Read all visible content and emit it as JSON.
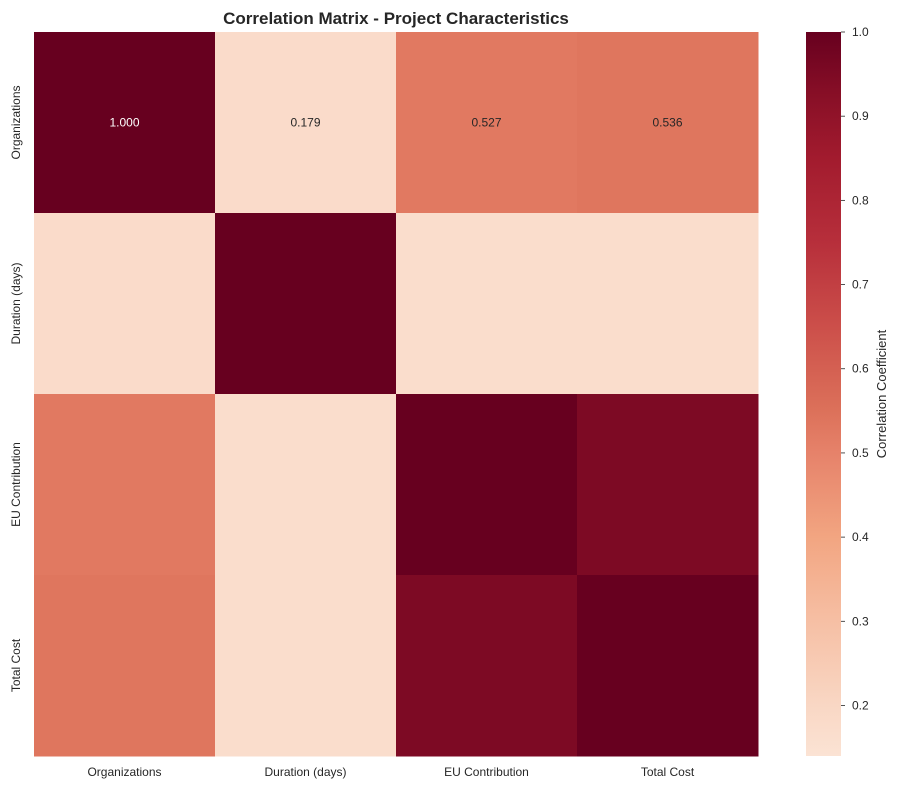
{
  "chart_data": {
    "type": "heatmap",
    "title": "Correlation Matrix - Project Characteristics",
    "xlabel": "",
    "ylabel": "",
    "x_categories": [
      "Organizations",
      "Duration (days)",
      "EU Contribution",
      "Total Cost"
    ],
    "y_categories": [
      "Organizations",
      "Duration (days)",
      "EU Contribution",
      "Total Cost"
    ],
    "values": [
      [
        1.0,
        0.179,
        0.527,
        0.536
      ],
      [
        0.179,
        1.0,
        0.17,
        0.17
      ],
      [
        0.527,
        0.17,
        1.0,
        0.95
      ],
      [
        0.536,
        0.17,
        0.95,
        1.0
      ]
    ],
    "annotations": [
      [
        "1.000",
        "0.179",
        "0.527",
        "0.536"
      ],
      [
        "",
        "",
        "",
        ""
      ],
      [
        "",
        "",
        "",
        ""
      ],
      [
        "",
        "",
        "",
        ""
      ]
    ],
    "colorbar": {
      "label": "Correlation Coefficient",
      "min": 0.14,
      "max": 1.0,
      "ticks": [
        0.2,
        0.3,
        0.4,
        0.5,
        0.6,
        0.7,
        0.8,
        0.9,
        1.0
      ],
      "tick_labels": [
        "0.2",
        "0.3",
        "0.4",
        "0.5",
        "0.6",
        "0.7",
        "0.8",
        "0.9",
        "1.0"
      ]
    },
    "colormap": "RdBu_r (upper half)",
    "colormap_stops": [
      {
        "v": 0.14,
        "color": "#fbe3d4"
      },
      {
        "v": 0.2,
        "color": "#f9d7c4"
      },
      {
        "v": 0.3,
        "color": "#f6bfa4"
      },
      {
        "v": 0.4,
        "color": "#f2a581"
      },
      {
        "v": 0.5,
        "color": "#e6826a"
      },
      {
        "v": 0.55,
        "color": "#dc715a"
      },
      {
        "v": 0.65,
        "color": "#cc4f4a"
      },
      {
        "v": 0.75,
        "color": "#b72f3b"
      },
      {
        "v": 0.85,
        "color": "#a21b2e"
      },
      {
        "v": 0.93,
        "color": "#860e26"
      },
      {
        "v": 1.0,
        "color": "#67001f"
      }
    ],
    "grid": false,
    "legend": "none"
  }
}
